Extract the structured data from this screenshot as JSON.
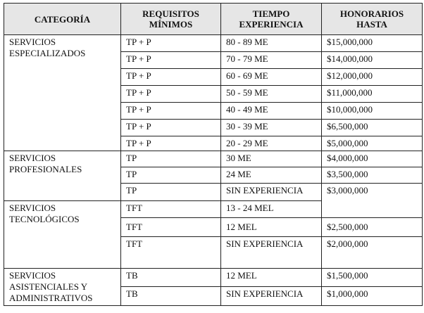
{
  "headers": [
    "CATEGORÍA",
    "REQUISITOS MÍNIMOS",
    "TIEMPO EXPERIENCIA",
    "HONORARIOS HASTA"
  ],
  "groups": [
    {
      "categoria": "SERVICIOS ESPECIALIZADOS",
      "rows": [
        {
          "requisito": "TP + P",
          "tiempo": "80 - 89 ME",
          "honorarios": "$15,000,000"
        },
        {
          "requisito": "TP + P",
          "tiempo": "70 - 79 ME",
          "honorarios": "$14,000,000"
        },
        {
          "requisito": "TP + P",
          "tiempo": "60 - 69 ME",
          "honorarios": "$12,000,000"
        },
        {
          "requisito": "TP + P",
          "tiempo": "50 - 59 ME",
          "honorarios": "$11,000,000"
        },
        {
          "requisito": "TP + P",
          "tiempo": "40 - 49 ME",
          "honorarios": "$10,000,000"
        },
        {
          "requisito": "TP + P",
          "tiempo": "30 - 39 ME",
          "honorarios": "$6,500,000"
        },
        {
          "requisito": "TP + P",
          "tiempo": "20 - 29 ME",
          "honorarios": "$5,000,000"
        }
      ]
    },
    {
      "categoria": "SERVICIOS PROFESIONALES",
      "rows": [
        {
          "requisito": "TP",
          "tiempo": "30 ME",
          "honorarios": "$4,000,000"
        },
        {
          "requisito": "TP",
          "tiempo": "24 ME",
          "honorarios": "$3,500,000"
        },
        {
          "requisito": "TP",
          "tiempo": "SIN EXPERIENCIA",
          "honorarios": "$3,000,000"
        }
      ]
    },
    {
      "categoria": "SERVICIOS TECNOLÓGICOS",
      "rows": [
        {
          "requisito": "TFT",
          "tiempo": "13 - 24 MEL"
        },
        {
          "requisito": "TFT",
          "tiempo": "12 MEL",
          "honorarios": "$2,500,000"
        },
        {
          "requisito": "TFT",
          "tiempo": "SIN EXPERIENCIA",
          "honorarios": "$2,000,000"
        }
      ]
    },
    {
      "categoria": "SERVICIOS ASISTENCIALES Y ADMINISTRATIVOS",
      "rows": [
        {
          "requisito": "TB",
          "tiempo": "12 MEL",
          "honorarios": "$1,500,000"
        },
        {
          "requisito": "TB",
          "tiempo": "SIN EXPERIENCIA",
          "honorarios": "$1,000,000"
        }
      ]
    }
  ]
}
